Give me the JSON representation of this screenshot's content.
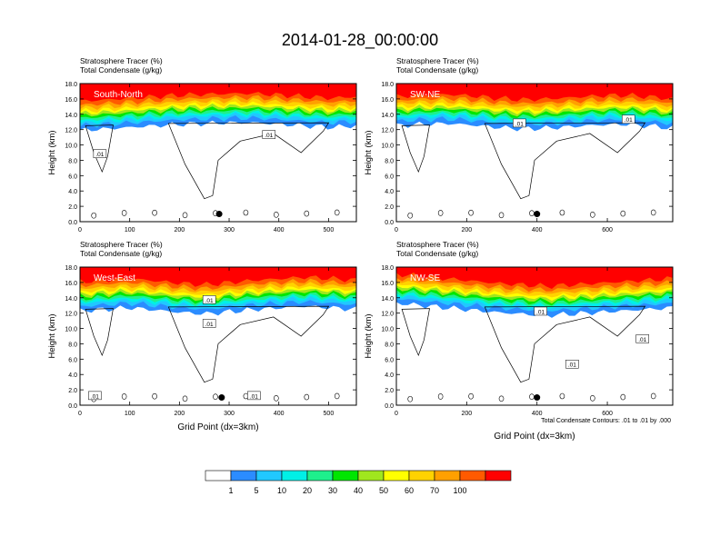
{
  "title": "2014-01-28_00:00:00",
  "contour_note": "Total Condensate Contours: .01 to .01 by .000",
  "chart_data": [
    {
      "type": "heatmap",
      "panel_label": "South-North",
      "subtitle_line1": "Stratosphere Tracer   (%)",
      "subtitle_line2": "Total Condensate   (g/kg)",
      "xlabel": "",
      "ylabel": "Height (km)",
      "xlim": [
        0,
        556
      ],
      "ylim": [
        0,
        18
      ],
      "xticks": [
        0,
        100,
        200,
        300,
        400,
        500
      ],
      "yticks": [
        "0.0",
        "2.0",
        "4.0",
        "6.0",
        "8.0",
        "10.0",
        "12.0",
        "14.0",
        "16.0",
        "18.0"
      ],
      "tropopause_km": [
        13.2,
        13.4,
        13.6,
        13.8,
        14.0,
        14.1,
        14.2,
        14.2,
        14.0,
        13.8,
        13.6,
        13.8
      ],
      "contour_labels": [
        {
          "text": ".01",
          "x": 40,
          "y": 8.8
        },
        {
          "text": ".01",
          "x": 380,
          "y": 11.3
        }
      ],
      "marker": {
        "x": 280,
        "y": 1.0
      }
    },
    {
      "type": "heatmap",
      "panel_label": "SW-NE",
      "subtitle_line1": "Stratosphere Tracer   (%)",
      "subtitle_line2": "Total Condensate   (g/kg)",
      "xlabel": "",
      "ylabel": "Height (km)",
      "xlim": [
        0,
        786
      ],
      "ylim": [
        0,
        18
      ],
      "xticks": [
        0,
        200,
        400,
        600
      ],
      "yticks": [
        "0.0",
        "2.0",
        "4.0",
        "6.0",
        "8.0",
        "10.0",
        "12.0",
        "14.0",
        "16.0",
        "18.0"
      ],
      "tropopause_km": [
        13.8,
        14.0,
        14.1,
        13.9,
        13.6,
        13.4,
        13.5,
        13.7,
        13.9,
        14.0,
        13.8,
        13.5
      ],
      "contour_labels": [
        {
          "text": ".01",
          "x": 350,
          "y": 12.8
        },
        {
          "text": ".01",
          "x": 660,
          "y": 13.3
        }
      ],
      "marker": {
        "x": 400,
        "y": 1.0
      }
    },
    {
      "type": "heatmap",
      "panel_label": "West-East",
      "subtitle_line1": "Stratosphere Tracer   (%)",
      "subtitle_line2": "Total Condensate   (g/kg)",
      "xlabel": "Grid Point (dx=3km)",
      "ylabel": "Height (km)",
      "xlim": [
        0,
        556
      ],
      "ylim": [
        0,
        18
      ],
      "xticks": [
        0,
        100,
        200,
        300,
        400,
        500
      ],
      "yticks": [
        "0.0",
        "2.0",
        "4.0",
        "6.0",
        "8.0",
        "10.0",
        "12.0",
        "14.0",
        "16.0",
        "18.0"
      ],
      "tropopause_km": [
        13.6,
        13.8,
        14.0,
        13.7,
        13.4,
        13.2,
        13.5,
        13.8,
        14.0,
        14.2,
        14.0,
        13.8
      ],
      "contour_labels": [
        {
          "text": ".01",
          "x": 260,
          "y": 13.7
        },
        {
          "text": ".01",
          "x": 260,
          "y": 10.6
        },
        {
          "text": ".01",
          "x": 30,
          "y": 1.2
        },
        {
          "text": ".01",
          "x": 350,
          "y": 1.2
        }
      ],
      "marker": {
        "x": 285,
        "y": 1.0
      }
    },
    {
      "type": "heatmap",
      "panel_label": "NW-SE",
      "subtitle_line1": "Stratosphere Tracer   (%)",
      "subtitle_line2": "Total Condensate   (g/kg)",
      "xlabel": "Grid Point (dx=3km)",
      "ylabel": "Height (km)",
      "xlim": [
        0,
        786
      ],
      "ylim": [
        0,
        18
      ],
      "xticks": [
        0,
        200,
        400,
        600
      ],
      "yticks": [
        "0.0",
        "2.0",
        "4.0",
        "6.0",
        "8.0",
        "10.0",
        "12.0",
        "14.0",
        "16.0",
        "18.0"
      ],
      "tropopause_km": [
        14.6,
        14.3,
        14.0,
        13.7,
        13.4,
        13.2,
        13.0,
        13.2,
        13.4,
        13.6,
        13.8,
        14.0
      ],
      "contour_labels": [
        {
          "text": ".01",
          "x": 410,
          "y": 12.2
        },
        {
          "text": ".01",
          "x": 700,
          "y": 8.6
        },
        {
          "text": ".01",
          "x": 500,
          "y": 5.3
        }
      ],
      "marker": {
        "x": 400,
        "y": 1.0
      }
    }
  ],
  "colorbar": {
    "labels": [
      "1",
      "5",
      "10",
      "20",
      "30",
      "40",
      "50",
      "60",
      "70",
      "100"
    ],
    "colors": [
      "#ffffff",
      "#2b8cff",
      "#21c8ff",
      "#00f0e6",
      "#1ef08c",
      "#00e600",
      "#a0e61e",
      "#ffff00",
      "#ffd200",
      "#ffa000",
      "#ff5a00",
      "#ff0000"
    ]
  }
}
